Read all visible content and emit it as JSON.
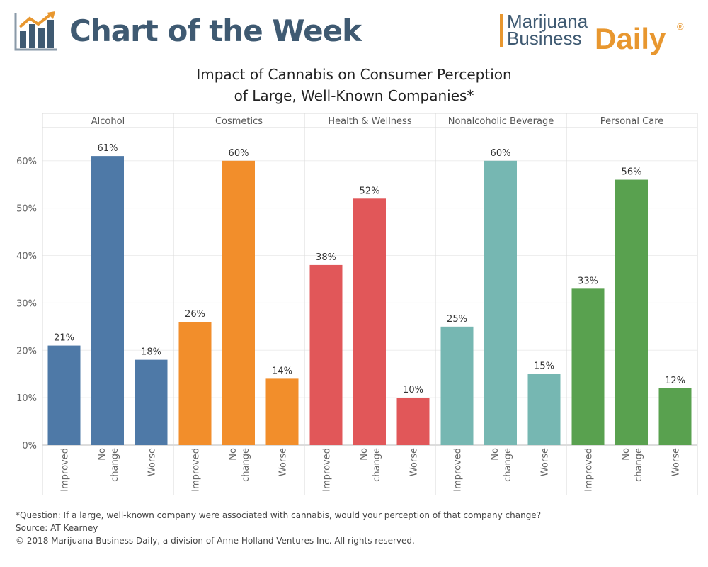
{
  "header": {
    "title": "Chart of the Week",
    "logo_icon": "bar-chart-trend-icon",
    "brand": {
      "line1": "Marijuana",
      "line2": "Business",
      "line3": "Daily",
      "mark": "®"
    }
  },
  "colors": {
    "title": "#3f5a72",
    "accent": "#e8972f",
    "Alcohol": "#4e79a7",
    "Cosmetics": "#f28e2b",
    "Health & Wellness": "#e15759",
    "Nonalcoholic Beverage": "#76b7b2",
    "Personal Care": "#59a14f"
  },
  "chart_data": {
    "type": "bar",
    "title": "Impact of Cannabis on Consumer Perception of Large, Well-Known Companies*",
    "title_lines": [
      "Impact of Cannabis on Consumer Perception",
      "of Large, Well-Known Companies*"
    ],
    "panels": [
      "Alcohol",
      "Cosmetics",
      "Health & Wellness",
      "Nonalcoholic Beverage",
      "Personal Care"
    ],
    "categories": [
      "Improved",
      "No change",
      "Worse"
    ],
    "series": [
      {
        "name": "Alcohol",
        "values": [
          21,
          61,
          18
        ]
      },
      {
        "name": "Cosmetics",
        "values": [
          26,
          60,
          14
        ]
      },
      {
        "name": "Health & Wellness",
        "values": [
          38,
          52,
          10
        ]
      },
      {
        "name": "Nonalcoholic Beverage",
        "values": [
          25,
          60,
          15
        ]
      },
      {
        "name": "Personal Care",
        "values": [
          33,
          56,
          12
        ]
      }
    ],
    "data_labels": [
      [
        "21%",
        "61%",
        "18%"
      ],
      [
        "26%",
        "60%",
        "14%"
      ],
      [
        "38%",
        "52%",
        "10%"
      ],
      [
        "25%",
        "60%",
        "15%"
      ],
      [
        "33%",
        "56%",
        "12%"
      ]
    ],
    "y_ticks": [
      "0%",
      "10%",
      "20%",
      "30%",
      "40%",
      "50%",
      "60%"
    ],
    "ylim": [
      0,
      67
    ],
    "grid": true,
    "legend": "none"
  },
  "footer": {
    "note": "*Question: If a large, well-known company were associated with cannabis, would your perception of that company change?",
    "source": "Source: AT Kearney",
    "copyright": "© 2018 Marijuana Business Daily, a division of Anne Holland Ventures Inc. All rights reserved."
  }
}
